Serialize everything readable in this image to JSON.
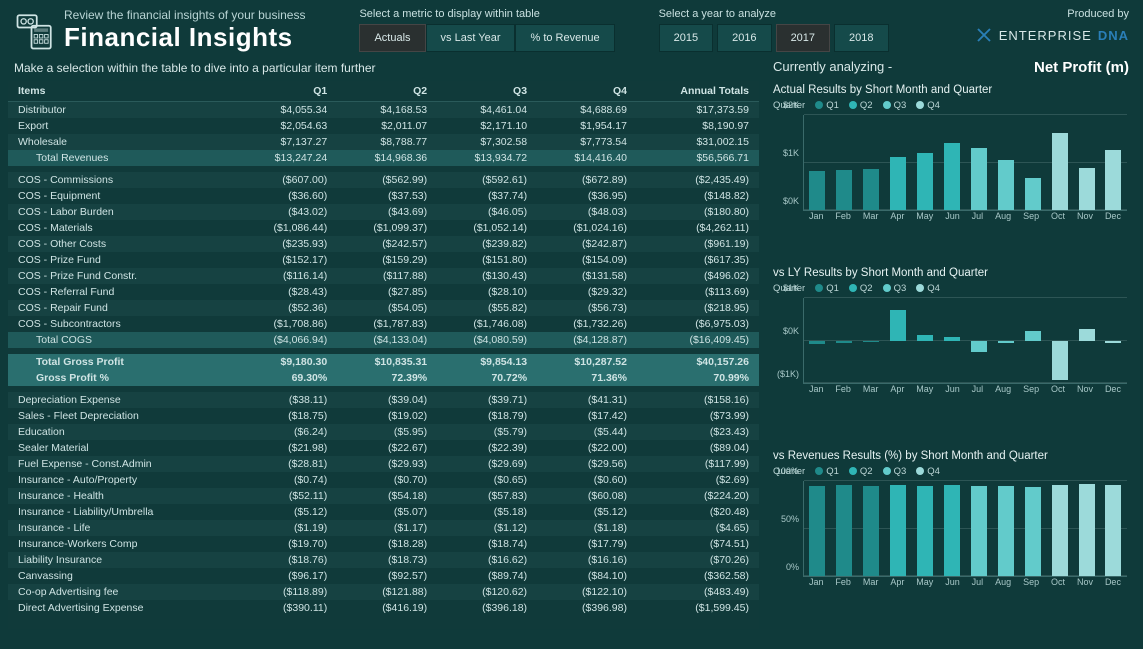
{
  "header": {
    "subtitle": "Review the financial insights of your business",
    "title": "Financial Insights",
    "metric_slicer": {
      "label": "Select a metric to display within table",
      "options": [
        "Actuals",
        "vs Last Year",
        "% to Revenue"
      ],
      "selected": 0
    },
    "year_slicer": {
      "label": "Select a year to analyze",
      "options": [
        "2015",
        "2016",
        "2017",
        "2018"
      ],
      "selected": 2
    },
    "producer_label": "Produced by",
    "producer_brand_a": "ENTERPRISE",
    "producer_brand_b": "DNA"
  },
  "instruction": "Make a selection within the table to dive into a particular item further",
  "table": {
    "columns": [
      "Items",
      "Q1",
      "Q2",
      "Q3",
      "Q4",
      "Annual Totals"
    ],
    "rows": [
      {
        "kind": "band",
        "cells": [
          "Distributor",
          "$4,055.34",
          "$4,168.53",
          "$4,461.04",
          "$4,688.69",
          "$17,373.59"
        ]
      },
      {
        "kind": "dark",
        "cells": [
          "Export",
          "$2,054.63",
          "$2,011.07",
          "$2,171.10",
          "$1,954.17",
          "$8,190.97"
        ]
      },
      {
        "kind": "band",
        "cells": [
          "Wholesale",
          "$7,137.27",
          "$8,788.77",
          "$7,302.58",
          "$7,773.54",
          "$31,002.15"
        ]
      },
      {
        "kind": "total",
        "cells": [
          "Total Revenues",
          "$13,247.24",
          "$14,968.36",
          "$13,934.72",
          "$14,416.40",
          "$56,566.71"
        ],
        "indent": true
      },
      {
        "kind": "spacer"
      },
      {
        "kind": "band",
        "cells": [
          "COS - Commissions",
          "($607.00)",
          "($562.99)",
          "($592.61)",
          "($672.89)",
          "($2,435.49)"
        ]
      },
      {
        "kind": "dark",
        "cells": [
          "COS - Equipment",
          "($36.60)",
          "($37.53)",
          "($37.74)",
          "($36.95)",
          "($148.82)"
        ]
      },
      {
        "kind": "band",
        "cells": [
          "COS - Labor Burden",
          "($43.02)",
          "($43.69)",
          "($46.05)",
          "($48.03)",
          "($180.80)"
        ]
      },
      {
        "kind": "dark",
        "cells": [
          "COS - Materials",
          "($1,086.44)",
          "($1,099.37)",
          "($1,052.14)",
          "($1,024.16)",
          "($4,262.11)"
        ]
      },
      {
        "kind": "band",
        "cells": [
          "COS - Other Costs",
          "($235.93)",
          "($242.57)",
          "($239.82)",
          "($242.87)",
          "($961.19)"
        ]
      },
      {
        "kind": "dark",
        "cells": [
          "COS - Prize Fund",
          "($152.17)",
          "($159.29)",
          "($151.80)",
          "($154.09)",
          "($617.35)"
        ]
      },
      {
        "kind": "band",
        "cells": [
          "COS - Prize Fund Constr.",
          "($116.14)",
          "($117.88)",
          "($130.43)",
          "($131.58)",
          "($496.02)"
        ]
      },
      {
        "kind": "dark",
        "cells": [
          "COS - Referral Fund",
          "($28.43)",
          "($27.85)",
          "($28.10)",
          "($29.32)",
          "($113.69)"
        ]
      },
      {
        "kind": "band",
        "cells": [
          "COS - Repair Fund",
          "($52.36)",
          "($54.05)",
          "($55.82)",
          "($56.73)",
          "($218.95)"
        ]
      },
      {
        "kind": "dark",
        "cells": [
          "COS - Subcontractors",
          "($1,708.86)",
          "($1,787.83)",
          "($1,746.08)",
          "($1,732.26)",
          "($6,975.03)"
        ]
      },
      {
        "kind": "total",
        "cells": [
          "Total COGS",
          "($4,066.94)",
          "($4,133.04)",
          "($4,080.59)",
          "($4,128.87)",
          "($16,409.45)"
        ],
        "indent": true
      },
      {
        "kind": "spacer"
      },
      {
        "kind": "summary",
        "cells": [
          "Total Gross Profit",
          "$9,180.30",
          "$10,835.31",
          "$9,854.13",
          "$10,287.52",
          "$40,157.26"
        ],
        "indent": true
      },
      {
        "kind": "summary",
        "cells": [
          "Gross Profit %",
          "69.30%",
          "72.39%",
          "70.72%",
          "71.36%",
          "70.99%"
        ],
        "indent": true
      },
      {
        "kind": "spacer"
      },
      {
        "kind": "band",
        "cells": [
          "Depreciation Expense",
          "($38.11)",
          "($39.04)",
          "($39.71)",
          "($41.31)",
          "($158.16)"
        ]
      },
      {
        "kind": "dark",
        "cells": [
          "Sales - Fleet Depreciation",
          "($18.75)",
          "($19.02)",
          "($18.79)",
          "($17.42)",
          "($73.99)"
        ]
      },
      {
        "kind": "band",
        "cells": [
          "Education",
          "($6.24)",
          "($5.95)",
          "($5.79)",
          "($5.44)",
          "($23.43)"
        ]
      },
      {
        "kind": "dark",
        "cells": [
          "Sealer Material",
          "($21.98)",
          "($22.67)",
          "($22.39)",
          "($22.00)",
          "($89.04)"
        ]
      },
      {
        "kind": "band",
        "cells": [
          "Fuel Expense - Const.Admin",
          "($28.81)",
          "($29.93)",
          "($29.69)",
          "($29.56)",
          "($117.99)"
        ]
      },
      {
        "kind": "dark",
        "cells": [
          "Insurance - Auto/Property",
          "($0.74)",
          "($0.70)",
          "($0.65)",
          "($0.60)",
          "($2.69)"
        ]
      },
      {
        "kind": "band",
        "cells": [
          "Insurance - Health",
          "($52.11)",
          "($54.18)",
          "($57.83)",
          "($60.08)",
          "($224.20)"
        ]
      },
      {
        "kind": "dark",
        "cells": [
          "Insurance - Liability/Umbrella",
          "($5.12)",
          "($5.07)",
          "($5.18)",
          "($5.12)",
          "($20.48)"
        ]
      },
      {
        "kind": "band",
        "cells": [
          "Insurance - Life",
          "($1.19)",
          "($1.17)",
          "($1.12)",
          "($1.18)",
          "($4.65)"
        ]
      },
      {
        "kind": "dark",
        "cells": [
          "Insurance-Workers Comp",
          "($19.70)",
          "($18.28)",
          "($18.74)",
          "($17.79)",
          "($74.51)"
        ]
      },
      {
        "kind": "band",
        "cells": [
          "Liability Insurance",
          "($18.76)",
          "($18.73)",
          "($16.62)",
          "($16.16)",
          "($70.26)"
        ]
      },
      {
        "kind": "dark",
        "cells": [
          "Canvassing",
          "($96.17)",
          "($92.57)",
          "($89.74)",
          "($84.10)",
          "($362.58)"
        ]
      },
      {
        "kind": "band",
        "cells": [
          "Co-op Advertising fee",
          "($118.89)",
          "($121.88)",
          "($120.62)",
          "($122.10)",
          "($483.49)"
        ]
      },
      {
        "kind": "dark",
        "cells": [
          "Direct Advertising Expense",
          "($390.11)",
          "($416.19)",
          "($396.18)",
          "($396.98)",
          "($1,599.45)"
        ]
      }
    ]
  },
  "right": {
    "analyzing_label": "Currently analyzing -",
    "analyzing_metric": "Net Profit (m)",
    "legend_label": "Quarter",
    "legend_items": [
      {
        "label": "Q1",
        "color": "#1f8a8a"
      },
      {
        "label": "Q2",
        "color": "#2fb5b5"
      },
      {
        "label": "Q3",
        "color": "#62cbcb"
      },
      {
        "label": "Q4",
        "color": "#9cdada"
      }
    ],
    "months": [
      "Jan",
      "Feb",
      "Mar",
      "Apr",
      "May",
      "Jun",
      "Jul",
      "Aug",
      "Sep",
      "Oct",
      "Nov",
      "Dec"
    ],
    "chart1": {
      "title": "Actual Results by Short Month and Quarter",
      "ylim": [
        0,
        2000
      ],
      "yticks": [
        {
          "v": 0,
          "l": "$0K"
        },
        {
          "v": 1000,
          "l": "$1K"
        },
        {
          "v": 2000,
          "l": "$2K"
        }
      ],
      "values": [
        820,
        840,
        860,
        1120,
        1200,
        1420,
        1300,
        1050,
        680,
        1620,
        880,
        1260
      ],
      "quarter_colors": [
        "#1f8a8a",
        "#1f8a8a",
        "#1f8a8a",
        "#2fb5b5",
        "#2fb5b5",
        "#2fb5b5",
        "#62cbcb",
        "#62cbcb",
        "#62cbcb",
        "#9cdada",
        "#9cdada",
        "#9cdada"
      ]
    },
    "chart2": {
      "title": "vs LY Results by Short Month and Quarter",
      "ylim": [
        -1000,
        1000
      ],
      "yticks": [
        {
          "v": -1000,
          "l": "($1K)"
        },
        {
          "v": 0,
          "l": "$0K"
        },
        {
          "v": 1000,
          "l": "$1K"
        }
      ],
      "values": [
        -80,
        -70,
        -40,
        720,
        120,
        80,
        -280,
        -60,
        220,
        -920,
        260,
        -60
      ],
      "quarter_colors": [
        "#1f8a8a",
        "#1f8a8a",
        "#1f8a8a",
        "#2fb5b5",
        "#2fb5b5",
        "#2fb5b5",
        "#62cbcb",
        "#62cbcb",
        "#62cbcb",
        "#9cdada",
        "#9cdada",
        "#9cdada"
      ]
    },
    "chart3": {
      "title": "vs Revenues Results (%) by Short Month and Quarter",
      "ylim": [
        0,
        100
      ],
      "yticks": [
        {
          "v": 0,
          "l": "0%"
        },
        {
          "v": 50,
          "l": "50%"
        },
        {
          "v": 100,
          "l": "100%"
        }
      ],
      "values": [
        95,
        96,
        95,
        96,
        95,
        96,
        95,
        95,
        94,
        96,
        97,
        96
      ],
      "quarter_colors": [
        "#1f8a8a",
        "#1f8a8a",
        "#1f8a8a",
        "#2fb5b5",
        "#2fb5b5",
        "#2fb5b5",
        "#62cbcb",
        "#62cbcb",
        "#62cbcb",
        "#9cdada",
        "#9cdada",
        "#9cdada"
      ]
    }
  },
  "colors": {
    "background": "#0f3a3a",
    "band": "#1a4f4f",
    "total": "#1f5a5a",
    "summary": "#2a6f6f",
    "text": "#d8e8e8",
    "grid": "#2d5555"
  }
}
